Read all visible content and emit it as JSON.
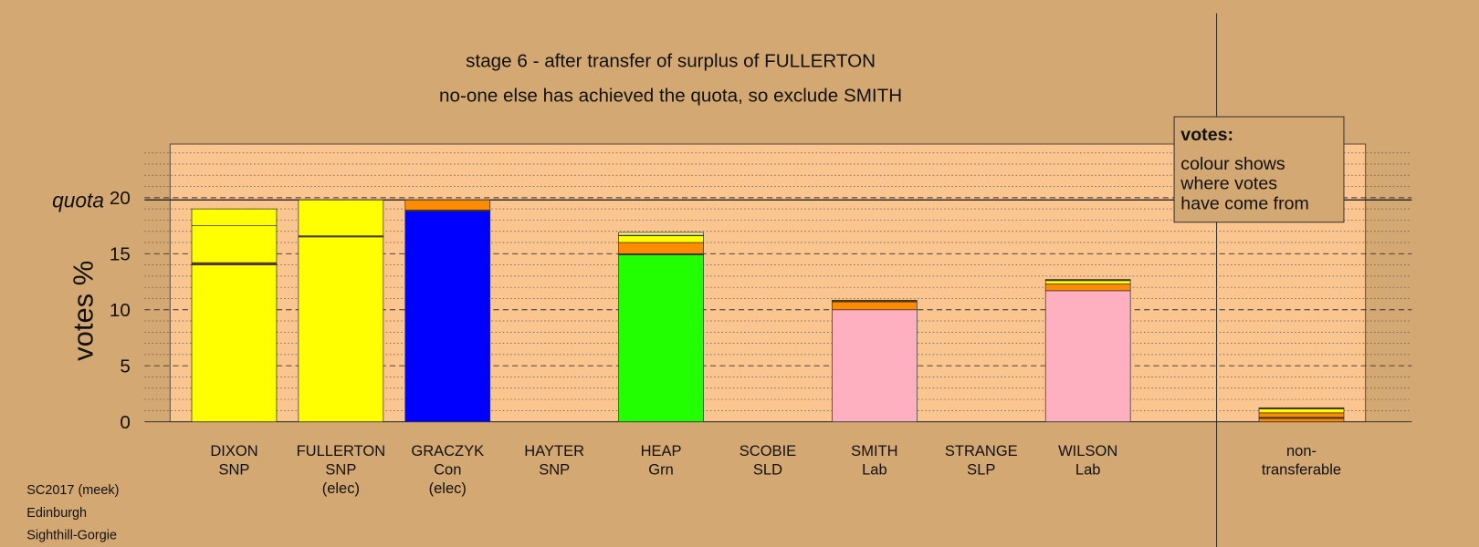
{
  "chart_data": {
    "type": "stacked-bar",
    "title": "stage 6 - after transfer of surplus of FULLERTON",
    "subtitle": "no-one else has achieved the quota, so exclude SMITH",
    "ylabel": "votes %",
    "ylim": [
      0,
      25
    ],
    "yticks": [
      0,
      5,
      10,
      15,
      20
    ],
    "grid": true,
    "minor_grid": true,
    "quota": 19.8,
    "quota_label": "quota",
    "categories": [
      [
        "DIXON",
        "SNP"
      ],
      [
        "FULLERTON",
        "SNP",
        "(elec)"
      ],
      [
        "GRACZYK",
        "Con",
        "(elec)"
      ],
      [
        "HAYTER",
        "SNP"
      ],
      [
        "HEAP",
        "Grn"
      ],
      [
        "SCOBIE",
        "SLD"
      ],
      [
        "SMITH",
        "Lab"
      ],
      [
        "STRANGE",
        "SLP"
      ],
      [
        "WILSON",
        "Lab"
      ],
      null,
      [
        "non-",
        "transferable"
      ]
    ],
    "bars": [
      {
        "segments": [
          {
            "color": "#ffff00",
            "value": 14.0
          },
          {
            "color": "#6b3a00",
            "value": 0.2
          },
          {
            "color": "#ffff00",
            "value": 3.3
          },
          {
            "color": "#ffff00",
            "value": 1.5
          }
        ]
      },
      {
        "segments": [
          {
            "color": "#ffff00",
            "value": 16.5
          },
          {
            "color": "#6b3a00",
            "value": 0.1
          },
          {
            "color": "#ffff00",
            "value": 3.2
          }
        ]
      },
      {
        "segments": [
          {
            "color": "#0000ff",
            "value": 18.8
          },
          {
            "color": "#6b3a00",
            "value": 0.1
          },
          {
            "color": "#ff8c00",
            "value": 0.9
          }
        ]
      },
      {
        "segments": []
      },
      {
        "segments": [
          {
            "color": "#22ff00",
            "value": 14.9
          },
          {
            "color": "#6b3a00",
            "value": 0.1
          },
          {
            "color": "#ff8c00",
            "value": 1.0
          },
          {
            "color": "#ffff00",
            "value": 0.6
          },
          {
            "color": "#6b3a00",
            "value": 0.05
          },
          {
            "color": "#ffff80",
            "value": 0.25
          }
        ]
      },
      {
        "segments": []
      },
      {
        "segments": [
          {
            "color": "#ffb0c0",
            "value": 10.0
          },
          {
            "color": "#ff8c00",
            "value": 0.7
          },
          {
            "color": "#6b3a00",
            "value": 0.15
          }
        ]
      },
      {
        "segments": []
      },
      {
        "segments": [
          {
            "color": "#ffb0c0",
            "value": 11.7
          },
          {
            "color": "#ff8c00",
            "value": 0.6
          },
          {
            "color": "#ffff00",
            "value": 0.3
          },
          {
            "color": "#6b3a00",
            "value": 0.1
          }
        ]
      },
      null,
      {
        "segments": [
          {
            "color": "#ff8c00",
            "value": 0.3
          },
          {
            "color": "#6b3a00",
            "value": 0.1
          },
          {
            "color": "#ff8c00",
            "value": 0.4
          },
          {
            "color": "#ffff00",
            "value": 0.35
          },
          {
            "color": "#6b3a00",
            "value": 0.1
          }
        ]
      }
    ],
    "legend_box": {
      "title": "votes:",
      "lines": [
        "colour shows",
        "where votes",
        "have come from"
      ]
    },
    "footer": [
      "SC2017 (meek)",
      "Edinburgh",
      "Sighthill-Gorgie"
    ]
  }
}
